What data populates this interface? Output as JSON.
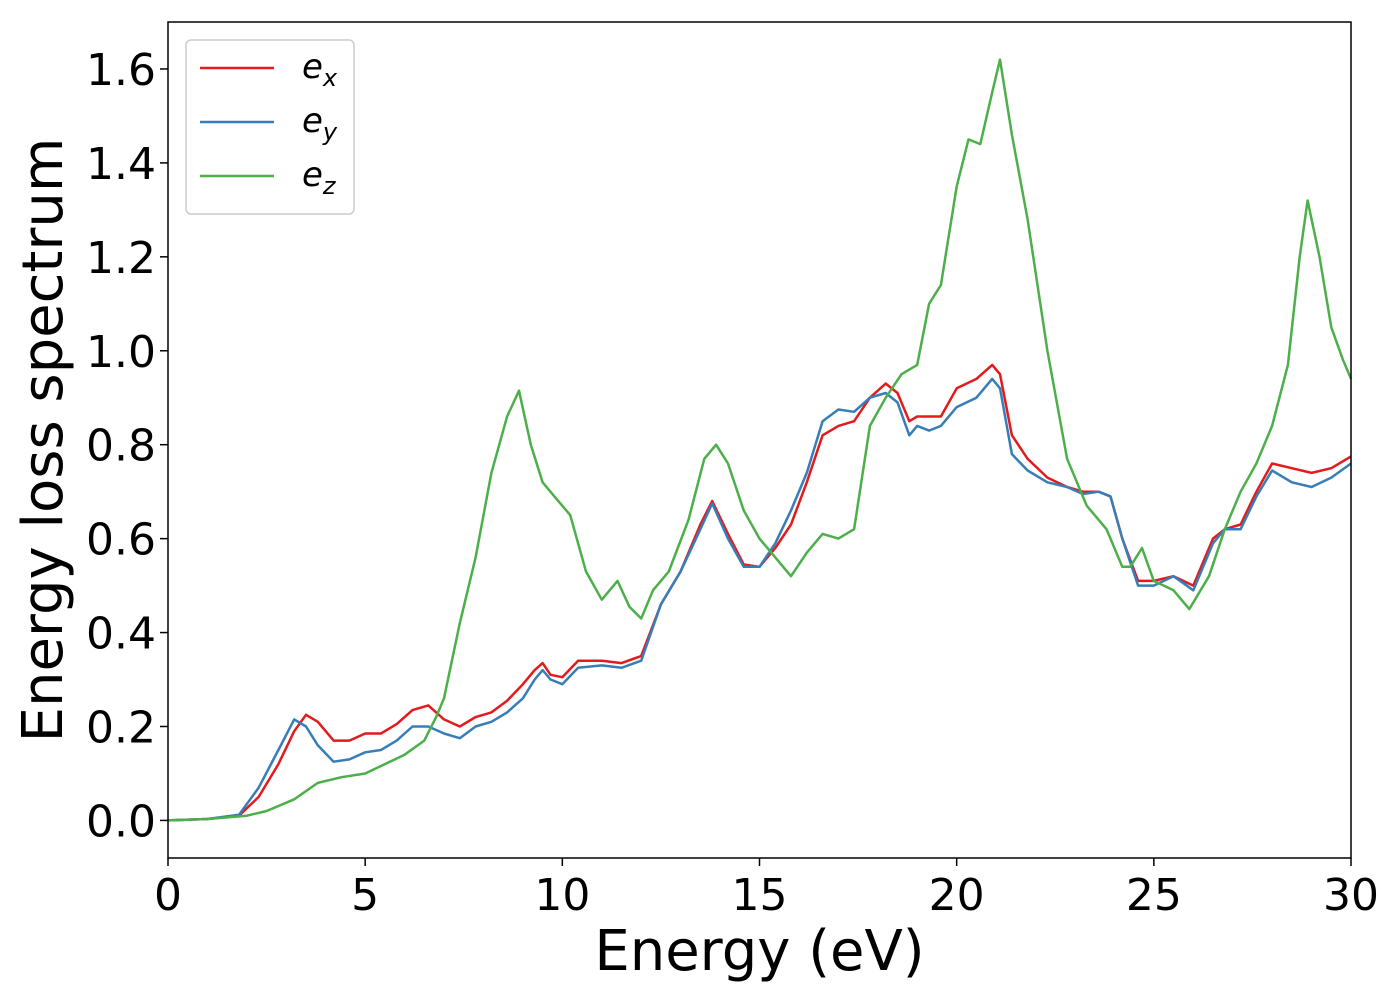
{
  "chart_data": {
    "type": "line",
    "xlabel": "Energy (eV)",
    "ylabel": "Energy loss spectrum",
    "xlim": [
      0,
      30
    ],
    "ylim": [
      -0.08,
      1.7
    ],
    "xticks": [
      "0",
      "5",
      "10",
      "15",
      "20",
      "25",
      "30"
    ],
    "yticks": [
      "0.0",
      "0.2",
      "0.4",
      "0.6",
      "0.8",
      "1.0",
      "1.2",
      "1.4",
      "1.6"
    ],
    "grid": false,
    "legend_position": "top-left",
    "series": [
      {
        "name": "e_x",
        "name_base": "e",
        "name_sub": "x",
        "color": "#e41a1c",
        "x": [
          0,
          1.0,
          1.8,
          2.3,
          2.8,
          3.2,
          3.5,
          3.8,
          4.2,
          4.6,
          5.0,
          5.4,
          5.8,
          6.2,
          6.6,
          7.0,
          7.4,
          7.8,
          8.2,
          8.6,
          9.0,
          9.3,
          9.5,
          9.7,
          10.0,
          10.4,
          11.0,
          11.5,
          12.0,
          12.5,
          13.0,
          13.5,
          13.8,
          14.2,
          14.6,
          15.0,
          15.4,
          15.8,
          16.2,
          16.6,
          17.0,
          17.4,
          17.8,
          18.2,
          18.5,
          18.8,
          19.0,
          19.3,
          19.6,
          20.0,
          20.5,
          20.9,
          21.1,
          21.4,
          21.8,
          22.3,
          22.8,
          23.2,
          23.6,
          23.9,
          24.2,
          24.6,
          25.0,
          25.5,
          26.0,
          26.5,
          26.8,
          27.2,
          27.6,
          28.0,
          28.5,
          29.0,
          29.5,
          30.0
        ],
        "y": [
          0.0,
          0.003,
          0.01,
          0.05,
          0.12,
          0.19,
          0.225,
          0.21,
          0.17,
          0.17,
          0.185,
          0.185,
          0.205,
          0.235,
          0.245,
          0.215,
          0.2,
          0.22,
          0.23,
          0.255,
          0.29,
          0.32,
          0.335,
          0.31,
          0.305,
          0.34,
          0.34,
          0.335,
          0.35,
          0.46,
          0.53,
          0.63,
          0.68,
          0.61,
          0.545,
          0.54,
          0.58,
          0.63,
          0.72,
          0.82,
          0.84,
          0.85,
          0.9,
          0.93,
          0.91,
          0.85,
          0.86,
          0.86,
          0.86,
          0.92,
          0.94,
          0.97,
          0.95,
          0.82,
          0.77,
          0.73,
          0.71,
          0.7,
          0.7,
          0.69,
          0.6,
          0.51,
          0.51,
          0.52,
          0.5,
          0.6,
          0.62,
          0.63,
          0.7,
          0.76,
          0.75,
          0.74,
          0.75,
          0.775
        ]
      },
      {
        "name": "e_y",
        "name_base": "e",
        "name_sub": "y",
        "color": "#377eb8",
        "x": [
          0,
          1.0,
          1.8,
          2.3,
          2.8,
          3.2,
          3.5,
          3.8,
          4.2,
          4.6,
          5.0,
          5.4,
          5.8,
          6.2,
          6.6,
          7.0,
          7.4,
          7.8,
          8.2,
          8.6,
          9.0,
          9.3,
          9.5,
          9.7,
          10.0,
          10.4,
          11.0,
          11.5,
          12.0,
          12.5,
          13.0,
          13.5,
          13.8,
          14.2,
          14.6,
          15.0,
          15.4,
          15.8,
          16.2,
          16.6,
          17.0,
          17.4,
          17.8,
          18.2,
          18.5,
          18.8,
          19.0,
          19.3,
          19.6,
          20.0,
          20.5,
          20.9,
          21.1,
          21.4,
          21.8,
          22.3,
          22.8,
          23.2,
          23.6,
          23.9,
          24.2,
          24.6,
          25.0,
          25.5,
          26.0,
          26.5,
          26.8,
          27.2,
          27.6,
          28.0,
          28.5,
          29.0,
          29.5,
          30.0
        ],
        "y": [
          0.0,
          0.003,
          0.012,
          0.07,
          0.15,
          0.215,
          0.2,
          0.16,
          0.125,
          0.13,
          0.145,
          0.15,
          0.17,
          0.2,
          0.2,
          0.185,
          0.175,
          0.2,
          0.21,
          0.23,
          0.26,
          0.3,
          0.32,
          0.3,
          0.29,
          0.325,
          0.33,
          0.325,
          0.34,
          0.46,
          0.53,
          0.62,
          0.675,
          0.6,
          0.54,
          0.54,
          0.59,
          0.66,
          0.74,
          0.85,
          0.875,
          0.87,
          0.9,
          0.91,
          0.89,
          0.82,
          0.84,
          0.83,
          0.84,
          0.88,
          0.9,
          0.94,
          0.92,
          0.78,
          0.745,
          0.72,
          0.71,
          0.695,
          0.7,
          0.69,
          0.6,
          0.5,
          0.5,
          0.52,
          0.49,
          0.59,
          0.62,
          0.62,
          0.69,
          0.745,
          0.72,
          0.71,
          0.73,
          0.76
        ]
      },
      {
        "name": "e_z",
        "name_base": "e",
        "name_sub": "z",
        "color": "#4daf4a",
        "x": [
          0,
          1.0,
          2.0,
          2.5,
          3.2,
          3.8,
          4.4,
          5.0,
          5.5,
          6.0,
          6.5,
          6.8,
          7.0,
          7.4,
          7.8,
          8.2,
          8.6,
          8.9,
          9.2,
          9.5,
          9.8,
          10.2,
          10.6,
          11.0,
          11.4,
          11.7,
          12.0,
          12.3,
          12.7,
          13.2,
          13.6,
          13.9,
          14.2,
          14.6,
          15.0,
          15.4,
          15.8,
          16.2,
          16.6,
          17.0,
          17.4,
          17.8,
          18.2,
          18.6,
          19.0,
          19.3,
          19.6,
          20.0,
          20.3,
          20.6,
          20.9,
          21.1,
          21.4,
          21.8,
          22.3,
          22.8,
          23.3,
          23.8,
          24.2,
          24.4,
          24.7,
          25.0,
          25.5,
          25.9,
          26.4,
          26.8,
          27.2,
          27.6,
          28.0,
          28.4,
          28.7,
          28.9,
          29.2,
          29.5,
          29.8,
          30.0
        ],
        "y": [
          0.0,
          0.003,
          0.01,
          0.02,
          0.045,
          0.08,
          0.092,
          0.1,
          0.12,
          0.14,
          0.17,
          0.22,
          0.26,
          0.42,
          0.56,
          0.74,
          0.86,
          0.915,
          0.8,
          0.72,
          0.69,
          0.65,
          0.53,
          0.47,
          0.51,
          0.455,
          0.43,
          0.49,
          0.53,
          0.64,
          0.77,
          0.8,
          0.76,
          0.66,
          0.6,
          0.56,
          0.52,
          0.57,
          0.61,
          0.6,
          0.62,
          0.84,
          0.9,
          0.95,
          0.97,
          1.1,
          1.14,
          1.35,
          1.45,
          1.44,
          1.55,
          1.62,
          1.46,
          1.28,
          1.0,
          0.77,
          0.67,
          0.62,
          0.54,
          0.54,
          0.58,
          0.51,
          0.49,
          0.45,
          0.52,
          0.62,
          0.7,
          0.76,
          0.84,
          0.97,
          1.2,
          1.32,
          1.2,
          1.05,
          0.98,
          0.94
        ]
      }
    ]
  }
}
